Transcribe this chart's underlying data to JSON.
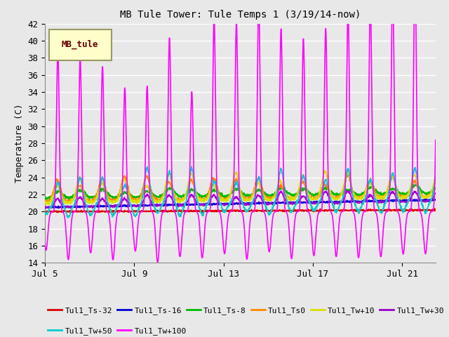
{
  "title": "MB Tule Tower: Tule Temps 1 (3/19/14-now)",
  "ylabel": "Temperature (C)",
  "xlim_days": [
    0,
    17.5
  ],
  "ylim": [
    14,
    42
  ],
  "yticks": [
    14,
    16,
    18,
    20,
    22,
    24,
    26,
    28,
    30,
    32,
    34,
    36,
    38,
    40,
    42
  ],
  "xtick_labels": [
    "Jul 5",
    "Jul 9",
    "Jul 13",
    "Jul 17",
    "Jul 21"
  ],
  "xtick_positions": [
    0,
    4,
    8,
    12,
    16
  ],
  "plot_bg_color": "#e8e8e8",
  "grid_color": "#ffffff",
  "legend_box_color": "#ffffcc",
  "legend_box_edge": "#999966",
  "legend_label_color": "#660000",
  "series": [
    {
      "name": "Tul1_Ts-32",
      "color": "#dd0000",
      "lw": 1.2
    },
    {
      "name": "Tul1_Ts-16",
      "color": "#0000cc",
      "lw": 1.2
    },
    {
      "name": "Tul1_Ts-8",
      "color": "#00bb00",
      "lw": 1.2
    },
    {
      "name": "Tul1_Ts0",
      "color": "#ff8800",
      "lw": 1.2
    },
    {
      "name": "Tul1_Tw+10",
      "color": "#dddd00",
      "lw": 1.2
    },
    {
      "name": "Tul1_Tw+30",
      "color": "#9900cc",
      "lw": 1.2
    },
    {
      "name": "Tul1_Tw+50",
      "color": "#00cccc",
      "lw": 1.2
    },
    {
      "name": "Tul1_Tw+100",
      "color": "#ff00ff",
      "lw": 1.2
    }
  ],
  "seed": 7,
  "n_points": 2000,
  "duration_days": 17.5
}
